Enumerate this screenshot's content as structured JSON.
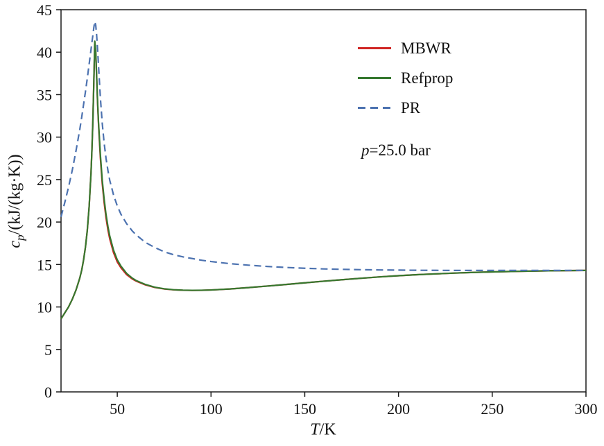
{
  "figure": {
    "background": "#ffffff",
    "frame_color": "#1a1a1a",
    "text_color": "#111111"
  },
  "chart_data": {
    "type": "line",
    "title": "",
    "xlabel": {
      "var": "T",
      "rest": "/K"
    },
    "ylabel": {
      "var": "c",
      "sub": "p",
      "rest": "/(kJ/(kg·K))"
    },
    "xlim": [
      20,
      300
    ],
    "ylim": [
      0,
      45
    ],
    "x_ticks": [
      50,
      100,
      150,
      200,
      250,
      300
    ],
    "y_ticks": [
      0,
      5,
      10,
      15,
      20,
      25,
      30,
      35,
      40,
      45
    ],
    "grid": false,
    "legend_position": "inside-upper-right",
    "annotation": {
      "var": "p",
      "rest": "=25.0 bar"
    },
    "x": [
      20,
      22,
      24,
      26,
      28,
      30,
      31,
      32,
      33,
      34,
      35,
      36,
      36.5,
      37,
      37.5,
      38,
      38.5,
      39,
      39.5,
      40,
      41,
      42,
      43,
      44,
      45,
      46,
      48,
      50,
      52,
      55,
      58,
      60,
      65,
      70,
      75,
      80,
      85,
      90,
      95,
      100,
      110,
      120,
      130,
      140,
      150,
      160,
      170,
      180,
      190,
      200,
      210,
      220,
      230,
      240,
      250,
      260,
      270,
      280,
      290,
      300
    ],
    "series": [
      {
        "name": "MBWR",
        "color": "#d02523",
        "style": "solid",
        "values": [
          8.6,
          9.3,
          10.0,
          10.9,
          12.0,
          13.4,
          14.3,
          15.5,
          17.0,
          19.0,
          21.8,
          25.8,
          28.6,
          32.0,
          36.5,
          41.2,
          40.0,
          37.0,
          34.0,
          31.5,
          27.5,
          24.5,
          22.3,
          20.5,
          19.1,
          18.0,
          16.4,
          15.3,
          14.6,
          13.8,
          13.3,
          13.05,
          12.6,
          12.3,
          12.12,
          12.02,
          11.97,
          11.95,
          11.96,
          12.0,
          12.12,
          12.28,
          12.46,
          12.65,
          12.84,
          13.03,
          13.21,
          13.38,
          13.54,
          13.68,
          13.8,
          13.9,
          13.99,
          14.07,
          14.13,
          14.18,
          14.22,
          14.26,
          14.28,
          14.3
        ]
      },
      {
        "name": "Refprop",
        "color": "#36782f",
        "style": "solid",
        "values": [
          8.6,
          9.3,
          10.0,
          10.9,
          12.0,
          13.4,
          14.3,
          15.5,
          17.0,
          19.0,
          21.8,
          25.8,
          28.6,
          32.0,
          36.5,
          41.3,
          40.2,
          37.2,
          34.2,
          31.7,
          27.9,
          24.9,
          22.7,
          20.9,
          19.5,
          18.35,
          16.7,
          15.55,
          14.8,
          13.95,
          13.4,
          13.12,
          12.65,
          12.33,
          12.14,
          12.03,
          11.98,
          11.96,
          11.97,
          12.0,
          12.12,
          12.28,
          12.46,
          12.65,
          12.84,
          13.03,
          13.21,
          13.38,
          13.54,
          13.68,
          13.8,
          13.9,
          13.99,
          14.07,
          14.13,
          14.18,
          14.22,
          14.26,
          14.28,
          14.3
        ]
      },
      {
        "name": "PR",
        "color": "#4c72b0",
        "style": "dashed",
        "dash": [
          10,
          6
        ],
        "values": [
          20.6,
          22.3,
          24.1,
          26.1,
          28.4,
          30.9,
          32.3,
          33.8,
          35.3,
          36.9,
          38.6,
          40.3,
          41.2,
          42.0,
          42.9,
          43.6,
          43.2,
          42.0,
          40.3,
          38.4,
          34.6,
          31.6,
          29.3,
          27.5,
          26.1,
          24.9,
          23.2,
          21.9,
          20.9,
          19.8,
          18.95,
          18.5,
          17.6,
          17.0,
          16.5,
          16.15,
          15.9,
          15.7,
          15.5,
          15.35,
          15.1,
          14.92,
          14.77,
          14.65,
          14.56,
          14.48,
          14.43,
          14.39,
          14.36,
          14.34,
          14.32,
          14.31,
          14.3,
          14.3,
          14.3,
          14.3,
          14.3,
          14.3,
          14.3,
          14.3
        ]
      }
    ]
  }
}
